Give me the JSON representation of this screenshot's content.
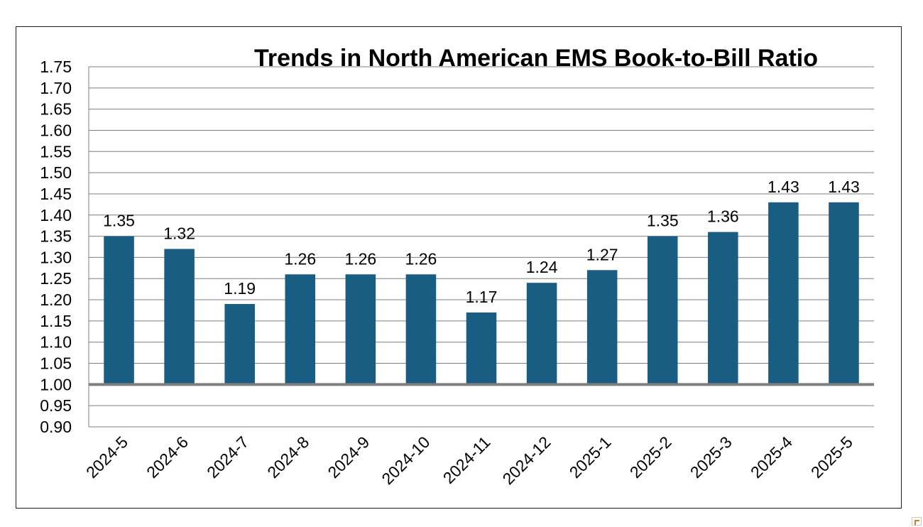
{
  "chart_data": {
    "type": "bar",
    "title": "Trends in North American EMS Book-to-Bill Ratio",
    "xlabel": "",
    "ylabel": "",
    "categories": [
      "2024-5",
      "2024-6",
      "2024-7",
      "2024-8",
      "2024-9",
      "2024-10",
      "2024-11",
      "2024-12",
      "2025-1",
      "2025-2",
      "2025-3",
      "2025-4",
      "2025-5"
    ],
    "values": [
      1.35,
      1.32,
      1.19,
      1.26,
      1.26,
      1.26,
      1.17,
      1.24,
      1.27,
      1.35,
      1.36,
      1.43,
      1.43
    ],
    "data_labels": [
      "1.35",
      "1.32",
      "1.19",
      "1.26",
      "1.26",
      "1.26",
      "1.17",
      "1.24",
      "1.27",
      "1.35",
      "1.36",
      "1.43",
      "1.43"
    ],
    "ylim": [
      0.9,
      1.75
    ],
    "yticks": [
      "0.90",
      "0.95",
      "1.00",
      "1.05",
      "1.10",
      "1.15",
      "1.20",
      "1.25",
      "1.30",
      "1.35",
      "1.40",
      "1.45",
      "1.50",
      "1.55",
      "1.60",
      "1.65",
      "1.70",
      "1.75"
    ],
    "reference_line": 1.0,
    "grid": true,
    "legend": "none",
    "colors": {
      "bar": "#195e82",
      "grid": "#7f7f7f",
      "reference_line": "#7f7f7f",
      "text": "#000000"
    }
  }
}
